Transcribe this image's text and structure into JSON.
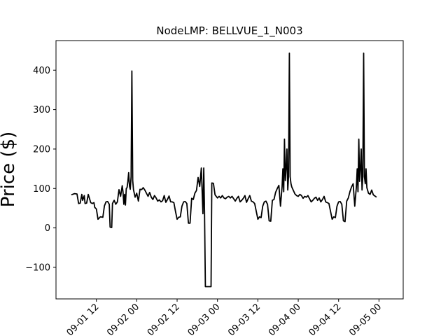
{
  "chart_data": {
    "type": "line",
    "title": "NodeLMP: BELLVUE_1_N003",
    "xlabel": "",
    "ylabel": "Price ($)",
    "ylim": [
      -180,
      475
    ],
    "xlim": [
      0.0,
      4.3
    ],
    "grid": false,
    "x_ticks": [
      {
        "x": 0.5,
        "label": "09-01 12"
      },
      {
        "x": 1.0,
        "label": "09-02 00"
      },
      {
        "x": 1.5,
        "label": "09-02 12"
      },
      {
        "x": 2.0,
        "label": "09-03 00"
      },
      {
        "x": 2.5,
        "label": "09-03 12"
      },
      {
        "x": 3.0,
        "label": "09-04 00"
      },
      {
        "x": 3.5,
        "label": "09-04 12"
      },
      {
        "x": 4.0,
        "label": "09-05 00"
      }
    ],
    "y_ticks": [
      {
        "y": -100,
        "label": "−100"
      },
      {
        "y": 0,
        "label": "0"
      },
      {
        "y": 100,
        "label": "100"
      },
      {
        "y": 200,
        "label": "200"
      },
      {
        "y": 300,
        "label": "300"
      },
      {
        "y": 400,
        "label": "400"
      }
    ],
    "series": [
      {
        "color": "#000000",
        "points": [
          [
            0.19,
            84
          ],
          [
            0.23,
            87
          ],
          [
            0.26,
            86
          ],
          [
            0.28,
            62
          ],
          [
            0.3,
            63
          ],
          [
            0.32,
            85
          ],
          [
            0.33,
            70
          ],
          [
            0.35,
            82
          ],
          [
            0.36,
            62
          ],
          [
            0.38,
            63
          ],
          [
            0.4,
            85
          ],
          [
            0.43,
            64
          ],
          [
            0.45,
            62
          ],
          [
            0.47,
            64
          ],
          [
            0.48,
            52
          ],
          [
            0.5,
            48
          ],
          [
            0.52,
            22
          ],
          [
            0.55,
            28
          ],
          [
            0.58,
            27
          ],
          [
            0.6,
            56
          ],
          [
            0.62,
            66
          ],
          [
            0.64,
            67
          ],
          [
            0.66,
            60
          ],
          [
            0.67,
            2
          ],
          [
            0.69,
            1
          ],
          [
            0.7,
            62
          ],
          [
            0.72,
            70
          ],
          [
            0.74,
            60
          ],
          [
            0.76,
            66
          ],
          [
            0.78,
            97
          ],
          [
            0.8,
            80
          ],
          [
            0.82,
            107
          ],
          [
            0.83,
            92
          ],
          [
            0.84,
            60
          ],
          [
            0.85,
            85
          ],
          [
            0.86,
            58
          ],
          [
            0.87,
            100
          ],
          [
            0.88,
            102
          ],
          [
            0.89,
            118
          ],
          [
            0.9,
            140
          ],
          [
            0.91,
            106
          ],
          [
            0.92,
            98
          ],
          [
            0.93,
            130
          ],
          [
            0.94,
            398
          ],
          [
            0.95,
            120
          ],
          [
            0.96,
            97
          ],
          [
            0.98,
            78
          ],
          [
            1.0,
            88
          ],
          [
            1.02,
            68
          ],
          [
            1.04,
            98
          ],
          [
            1.06,
            97
          ],
          [
            1.08,
            102
          ],
          [
            1.1,
            96
          ],
          [
            1.12,
            88
          ],
          [
            1.14,
            80
          ],
          [
            1.16,
            90
          ],
          [
            1.18,
            78
          ],
          [
            1.2,
            72
          ],
          [
            1.22,
            82
          ],
          [
            1.24,
            76
          ],
          [
            1.26,
            68
          ],
          [
            1.28,
            71
          ],
          [
            1.3,
            66
          ],
          [
            1.32,
            69
          ],
          [
            1.34,
            82
          ],
          [
            1.36,
            65
          ],
          [
            1.38,
            72
          ],
          [
            1.4,
            81
          ],
          [
            1.42,
            66
          ],
          [
            1.44,
            66
          ],
          [
            1.46,
            64
          ],
          [
            1.48,
            42
          ],
          [
            1.5,
            22
          ],
          [
            1.52,
            27
          ],
          [
            1.54,
            28
          ],
          [
            1.56,
            55
          ],
          [
            1.58,
            66
          ],
          [
            1.6,
            67
          ],
          [
            1.62,
            62
          ],
          [
            1.64,
            12
          ],
          [
            1.66,
            12
          ],
          [
            1.68,
            75
          ],
          [
            1.7,
            72
          ],
          [
            1.72,
            88
          ],
          [
            1.74,
            95
          ],
          [
            1.76,
            128
          ],
          [
            1.78,
            105
          ],
          [
            1.8,
            152
          ],
          [
            1.82,
            36
          ],
          [
            1.83,
            152
          ],
          [
            1.84,
            40
          ],
          [
            1.85,
            -149
          ],
          [
            1.9,
            -149
          ],
          [
            1.92,
            -149
          ],
          [
            1.93,
            114
          ],
          [
            1.95,
            113
          ],
          [
            1.97,
            84
          ],
          [
            2.0,
            76
          ],
          [
            2.02,
            80
          ],
          [
            2.04,
            76
          ],
          [
            2.06,
            82
          ],
          [
            2.08,
            76
          ],
          [
            2.1,
            74
          ],
          [
            2.12,
            78
          ],
          [
            2.14,
            80
          ],
          [
            2.16,
            76
          ],
          [
            2.18,
            80
          ],
          [
            2.2,
            74
          ],
          [
            2.22,
            68
          ],
          [
            2.24,
            75
          ],
          [
            2.26,
            80
          ],
          [
            2.28,
            66
          ],
          [
            2.3,
            70
          ],
          [
            2.32,
            75
          ],
          [
            2.34,
            82
          ],
          [
            2.36,
            65
          ],
          [
            2.38,
            74
          ],
          [
            2.4,
            82
          ],
          [
            2.42,
            68
          ],
          [
            2.44,
            66
          ],
          [
            2.46,
            62
          ],
          [
            2.48,
            42
          ],
          [
            2.5,
            22
          ],
          [
            2.52,
            28
          ],
          [
            2.54,
            26
          ],
          [
            2.56,
            55
          ],
          [
            2.58,
            66
          ],
          [
            2.6,
            68
          ],
          [
            2.62,
            60
          ],
          [
            2.64,
            18
          ],
          [
            2.66,
            17
          ],
          [
            2.68,
            70
          ],
          [
            2.7,
            72
          ],
          [
            2.72,
            90
          ],
          [
            2.74,
            100
          ],
          [
            2.76,
            108
          ],
          [
            2.78,
            55
          ],
          [
            2.8,
            105
          ],
          [
            2.81,
            150
          ],
          [
            2.82,
            92
          ],
          [
            2.83,
            225
          ],
          [
            2.84,
            120
          ],
          [
            2.85,
            150
          ],
          [
            2.86,
            200
          ],
          [
            2.87,
            96
          ],
          [
            2.88,
            130
          ],
          [
            2.89,
            443
          ],
          [
            2.9,
            130
          ],
          [
            2.91,
            112
          ],
          [
            2.92,
            104
          ],
          [
            2.94,
            95
          ],
          [
            2.96,
            86
          ],
          [
            2.98,
            82
          ],
          [
            3.0,
            80
          ],
          [
            3.02,
            85
          ],
          [
            3.04,
            82
          ],
          [
            3.06,
            75
          ],
          [
            3.08,
            80
          ],
          [
            3.1,
            78
          ],
          [
            3.12,
            82
          ],
          [
            3.14,
            74
          ],
          [
            3.16,
            66
          ],
          [
            3.18,
            70
          ],
          [
            3.2,
            75
          ],
          [
            3.22,
            78
          ],
          [
            3.24,
            70
          ],
          [
            3.26,
            76
          ],
          [
            3.28,
            66
          ],
          [
            3.3,
            72
          ],
          [
            3.32,
            80
          ],
          [
            3.34,
            66
          ],
          [
            3.36,
            64
          ],
          [
            3.38,
            62
          ],
          [
            3.4,
            42
          ],
          [
            3.42,
            22
          ],
          [
            3.44,
            28
          ],
          [
            3.46,
            26
          ],
          [
            3.48,
            55
          ],
          [
            3.5,
            66
          ],
          [
            3.52,
            67
          ],
          [
            3.54,
            60
          ],
          [
            3.56,
            18
          ],
          [
            3.58,
            16
          ],
          [
            3.6,
            68
          ],
          [
            3.62,
            76
          ],
          [
            3.64,
            92
          ],
          [
            3.66,
            104
          ],
          [
            3.68,
            112
          ],
          [
            3.7,
            55
          ],
          [
            3.72,
            104
          ],
          [
            3.73,
            150
          ],
          [
            3.74,
            92
          ],
          [
            3.75,
            225
          ],
          [
            3.76,
            118
          ],
          [
            3.77,
            150
          ],
          [
            3.78,
            200
          ],
          [
            3.79,
            96
          ],
          [
            3.8,
            130
          ],
          [
            3.81,
            443
          ],
          [
            3.82,
            130
          ],
          [
            3.83,
            112
          ],
          [
            3.84,
            150
          ],
          [
            3.85,
            102
          ],
          [
            3.87,
            88
          ],
          [
            3.89,
            85
          ],
          [
            3.91,
            96
          ],
          [
            3.93,
            84
          ],
          [
            3.95,
            81
          ],
          [
            3.97,
            78
          ]
        ]
      }
    ]
  }
}
